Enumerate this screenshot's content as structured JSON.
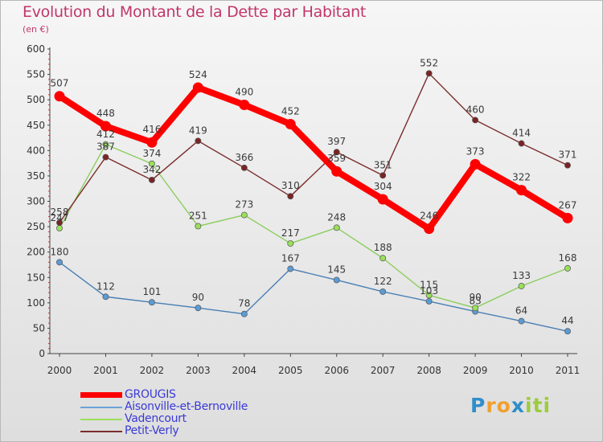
{
  "header": {
    "title": "Evolution du Montant de la Dette par Habitant",
    "subtitle": "(en €)"
  },
  "chart_data": {
    "type": "line",
    "title": "Evolution du Montant de la Dette par Habitant",
    "ylabel": "(en €)",
    "xlabel": "",
    "x": [
      "2000",
      "2001",
      "2002",
      "2003",
      "2004",
      "2005",
      "2006",
      "2007",
      "2008",
      "2009",
      "2010",
      "2011"
    ],
    "ylim": [
      0,
      600
    ],
    "yticks": [
      0,
      50,
      100,
      150,
      200,
      250,
      300,
      350,
      400,
      450,
      500,
      550,
      600
    ],
    "grid": false,
    "legend": "bottom-left",
    "series": [
      {
        "name": "Aisonville-et-Bernoville",
        "color": "#5b9bd5",
        "stroke": "#4a7fb5",
        "values": [
          180,
          112,
          101,
          90,
          78,
          167,
          145,
          122,
          103,
          83,
          64,
          44
        ],
        "labels": [
          "180",
          "112",
          "101",
          "90",
          "78",
          "167",
          "145",
          "122",
          "103",
          "83",
          "64",
          "44"
        ]
      },
      {
        "name": "Vadencourt",
        "color": "#9ae05a",
        "stroke": "#8ccd5c",
        "values": [
          247,
          412,
          374,
          251,
          273,
          217,
          248,
          188,
          115,
          90,
          133,
          168
        ],
        "labels": [
          "247",
          "412",
          "374",
          "251",
          "273",
          "217",
          "248",
          "188",
          "115",
          "90",
          "133",
          "168"
        ]
      },
      {
        "name": "Petit-Verly",
        "color": "#7a2424",
        "stroke": "#7a2c2c",
        "values": [
          258,
          387,
          342,
          419,
          366,
          310,
          397,
          351,
          552,
          460,
          414,
          371
        ],
        "labels": [
          "258",
          "387",
          "342",
          "419",
          "366",
          "310",
          "397",
          "351",
          "552",
          "460",
          "414",
          "371"
        ]
      },
      {
        "name": "GROUGIS",
        "color": "#ff0000",
        "stroke": "#ff0000",
        "values": [
          507,
          448,
          416,
          524,
          490,
          452,
          359,
          304,
          246,
          373,
          322,
          267
        ],
        "labels": [
          "507",
          "448",
          "416",
          "524",
          "490",
          "452",
          "359",
          "304",
          "246",
          "373",
          "322",
          "267"
        ]
      }
    ]
  },
  "legend": {
    "items": [
      {
        "label": "GROUGIS",
        "color": "#ff0000",
        "thick": true
      },
      {
        "label": "Aisonville-et-Bernoville",
        "color": "#6aa3d8",
        "thick": false
      },
      {
        "label": "Vadencourt",
        "color": "#9ae05a",
        "thick": false
      },
      {
        "label": "Petit-Verly",
        "color": "#7a2c2c",
        "thick": false
      }
    ]
  },
  "brand": {
    "letters": [
      "P",
      "r",
      "o",
      "x",
      "i",
      "t",
      "i"
    ],
    "colors": [
      "#2e8ec9",
      "#f0a030",
      "#f0a030",
      "#2e8ec9",
      "#9ccc3c",
      "#9ccc3c",
      "#9ccc3c"
    ]
  }
}
